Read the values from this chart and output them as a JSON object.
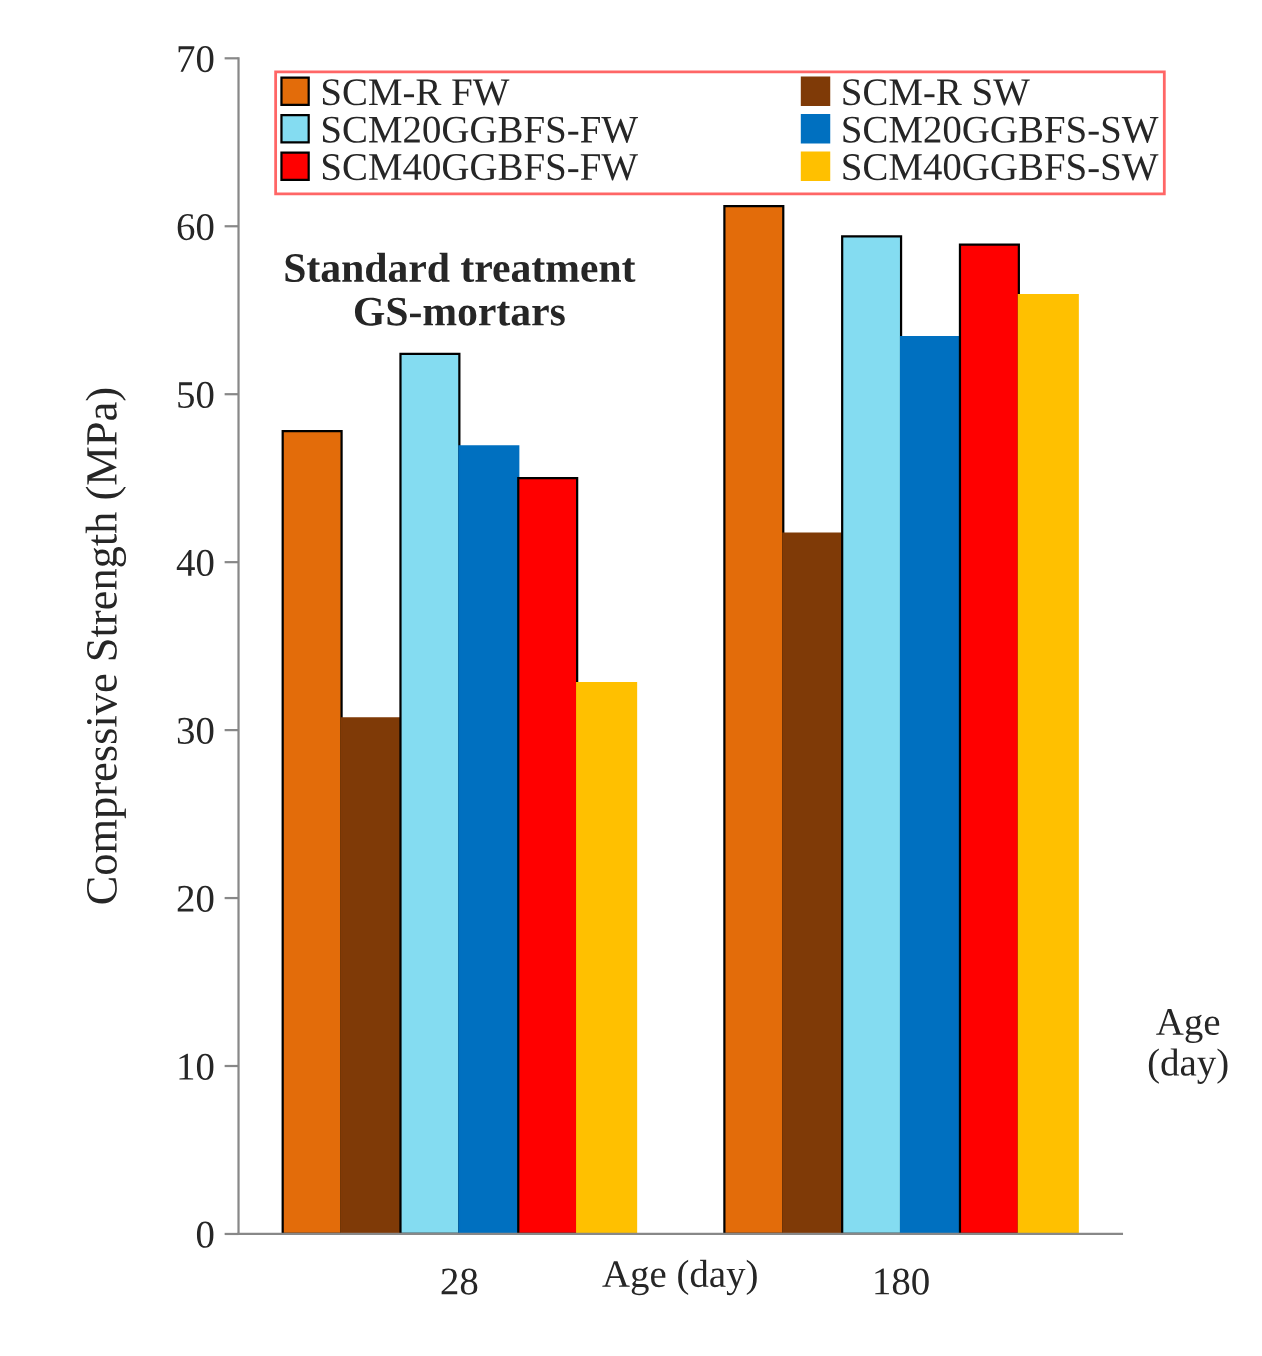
{
  "chart_data": {
    "type": "bar",
    "ylabel": "Compressive Strength (MPa)",
    "xlabel": "Age (day)",
    "categories": [
      "28",
      "180"
    ],
    "series": [
      {
        "name": "SCM-R FW",
        "color": "#e36c0a",
        "values": [
          47.8,
          61.2
        ]
      },
      {
        "name": "SCM-R SW",
        "color": "#7f3a07",
        "values": [
          30.7,
          41.7
        ]
      },
      {
        "name": "SCM20GGBFS-FW",
        "color": "#84dcf1",
        "values": [
          52.4,
          59.4
        ]
      },
      {
        "name": "SCM20GGBFS-SW",
        "color": "#0070c0",
        "values": [
          46.9,
          53.4
        ]
      },
      {
        "name": "SCM40GGBFS-FW",
        "color": "#ff0000",
        "values": [
          45.0,
          58.9
        ]
      },
      {
        "name": "SCM40GGBFS-SW",
        "color": "#ffc000",
        "values": [
          32.8,
          55.9
        ]
      }
    ],
    "ylim": [
      0,
      70
    ],
    "yticks": [
      0,
      10,
      20,
      30,
      40,
      50,
      60,
      70
    ],
    "annotations": [
      "Standard treatment\nGS-mortars",
      "Age\n(day)"
    ],
    "legend": "top",
    "grid": false
  }
}
